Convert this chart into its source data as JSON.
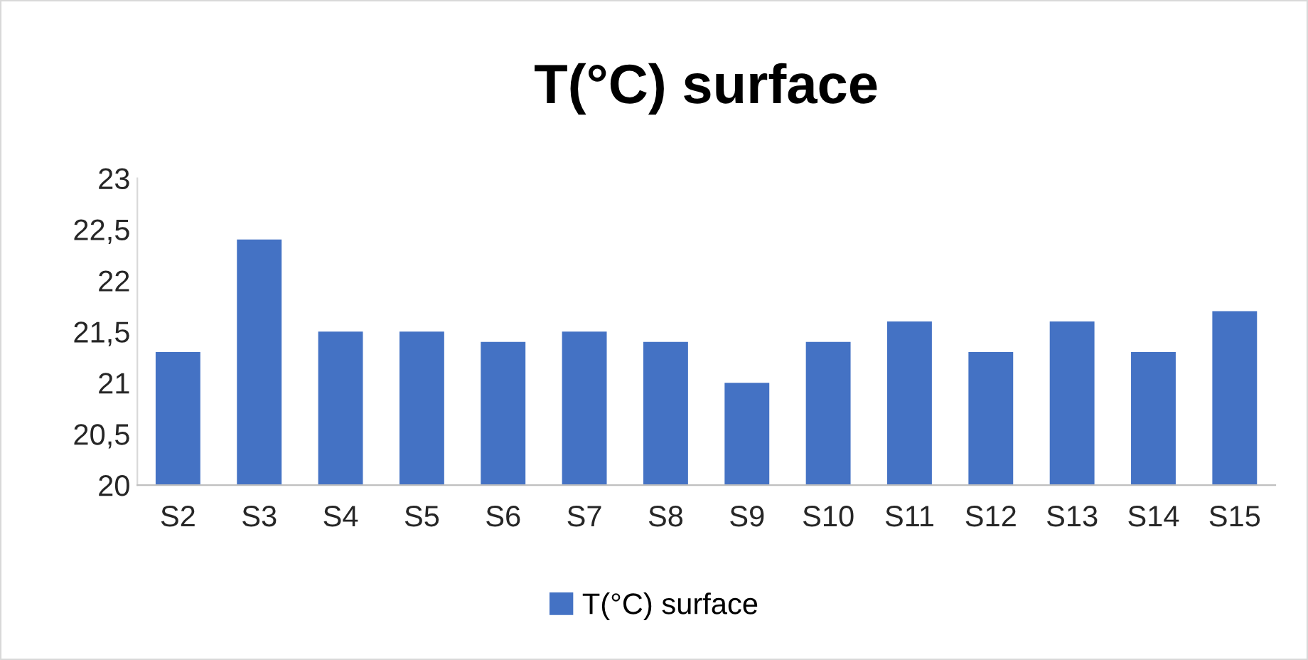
{
  "chart_data": {
    "type": "bar",
    "title": "T(°C) surface",
    "categories": [
      "S2",
      "S3",
      "S4",
      "S5",
      "S6",
      "S7",
      "S8",
      "S9",
      "S10",
      "S11",
      "S12",
      "S13",
      "S14",
      "S15"
    ],
    "series": [
      {
        "name": "T(°C) surface",
        "color": "#4472c4",
        "values": [
          21.3,
          22.4,
          21.5,
          21.5,
          21.4,
          21.5,
          21.4,
          21.0,
          21.4,
          21.6,
          21.3,
          21.6,
          21.3,
          21.7
        ]
      }
    ],
    "ylim": [
      20,
      23
    ],
    "yticks": [
      20,
      {
        "value": 20.5,
        "label": "20,5"
      },
      21,
      {
        "value": 21.5,
        "label": "21,5"
      },
      22,
      {
        "value": 22.5,
        "label": "22,5"
      },
      23
    ],
    "grid": false,
    "legend": "bottom"
  }
}
